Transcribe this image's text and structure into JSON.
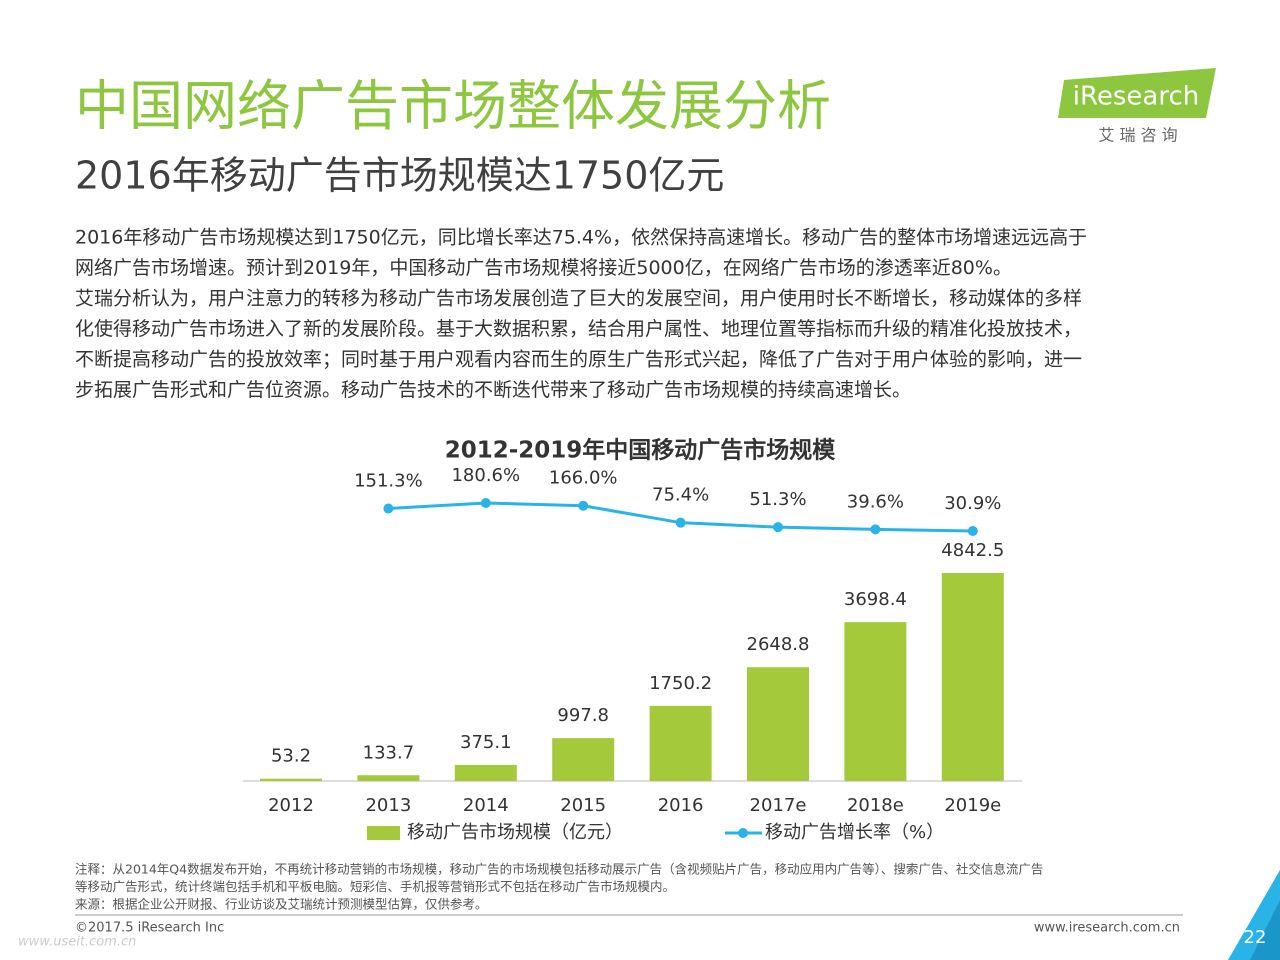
{
  "header": {
    "title": "中国网络广告市场整体发展分析",
    "subtitle": "2016年移动广告市场规模达1750亿元"
  },
  "logo": {
    "name": "iResearch",
    "tagline": "艾 瑞 咨 询"
  },
  "body": {
    "lines": [
      "2016年移动广告市场规模达到1750亿元，同比增长率达75.4%，依然保持高速增长。移动广告的整体市场增速远远高于",
      "网络广告市场增速。预计到2019年，中国移动广告市场规模将接近5000亿，在网络广告市场的渗透率近80%。",
      "艾瑞分析认为，用户注意力的转移为移动广告市场发展创造了巨大的发展空间，用户使用时长不断增长，移动媒体的多样",
      "化使得移动广告市场进入了新的发展阶段。基于大数据积累，结合用户属性、地理位置等指标而升级的精准化投放技术，",
      "不断提高移动广告的投放效率；同时基于用户观看内容而生的原生广告形式兴起，降低了广告对于用户体验的影响，进一",
      "步拓展广告形式和广告位资源。移动广告技术的不断迭代带来了移动广告市场规模的持续高速增长。"
    ]
  },
  "chart_data": {
    "type": "bar-line",
    "title": "2012-2019年中国移动广告市场规模",
    "categories": [
      "2012",
      "2013",
      "2014",
      "2015",
      "2016",
      "2017e",
      "2018e",
      "2019e"
    ],
    "series": [
      {
        "name": "移动广告市场规模（亿元）",
        "type": "bar",
        "color": "#a4c93b",
        "values": [
          53.2,
          133.7,
          375.1,
          997.8,
          1750.2,
          2648.8,
          3698.4,
          4842.5
        ]
      },
      {
        "name": "移动广告增长率（%）",
        "type": "line",
        "axis": "y2",
        "color": "#2ab3e6",
        "values": [
          null,
          151.3,
          180.6,
          166.0,
          75.4,
          51.3,
          39.6,
          30.9
        ],
        "value_labels": [
          null,
          "151.3%",
          "180.6%",
          "166.0%",
          "75.4%",
          "51.3%",
          "39.6%",
          "30.9%"
        ]
      }
    ]
  },
  "notes": [
    "注释：从2014年Q4数据发布开始，不再统计移动营销的市场规模，移动广告的市场规模包括移动展示广告（含视频贴片广告，移动应用内广告等）、搜索广告、社交信息流广告",
    "等移动广告形式，统计终端包括手机和平板电脑。短彩信、手机报等营销形式不包括在移动广告市场规模内。",
    "来源：根据企业公开财报、行业访谈及艾瑞统计预测模型估算，仅供参考。"
  ],
  "footer": {
    "copyright": "©2017.5 iResearch Inc",
    "url": "www.iresearch.com.cn",
    "page": "22",
    "watermark": "www.useit.com.cn"
  }
}
